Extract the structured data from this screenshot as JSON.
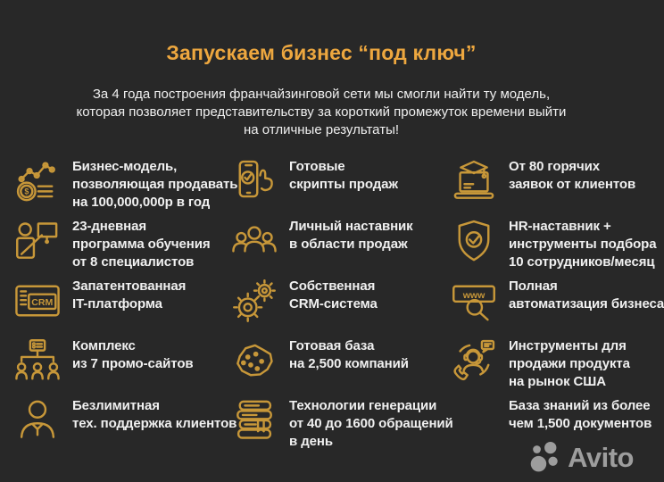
{
  "header": {
    "title": "Запускаем бизнес “под ключ”",
    "subtitle": "За 4 года построения франчайзинговой сети мы смогли найти ту модель,\nкоторая позволяет представительству за короткий промежуток времени выйти\nна отличные результаты!"
  },
  "colors": {
    "background": "#282828",
    "accent_gold": "#C79739",
    "title_gold": "#EDA73F",
    "text": "#F0F0F0",
    "logo_gray": "#9D9D9D"
  },
  "items": [
    {
      "icon": "chart-coins-icon",
      "text": "Бизнес-модель,\nпозволяющая продавать\nна 100,000,000р в год"
    },
    {
      "icon": "smartphone-tap-icon",
      "text": "Готовые\nскрипты продаж"
    },
    {
      "icon": "laptop-graduation-icon",
      "text": "От 80 горячих\nзаявок от клиентов"
    },
    {
      "icon": "trainer-board-icon",
      "text": "23-дневная\nпрограмма обучения\nот 8 специалистов"
    },
    {
      "icon": "people-group-icon",
      "text": "Личный наставник\nв области продаж"
    },
    {
      "icon": "shield-check-icon",
      "text": "HR-наставник +\nинструменты подбора\n10 сотрудников/месяц"
    },
    {
      "icon": "crm-window-icon",
      "text": "Запатентованная\nIT-платформа"
    },
    {
      "icon": "gears-icon",
      "text": "Собственная\nCRM-система"
    },
    {
      "icon": "www-search-icon",
      "text": "Полная\nавтоматизация бизнеса"
    },
    {
      "icon": "sitemap-icon",
      "text": "Комплекс\nиз 7 промо-сайтов"
    },
    {
      "icon": "map-pins-icon",
      "text": "Готовая база\nна 2,500 компаний"
    },
    {
      "icon": "support-agent-icon",
      "text": "Инструменты для\nпродажи продукта\nна рынок США"
    },
    {
      "icon": "person-icon",
      "text": "Безлимитная\nтех. поддержка клиентов"
    },
    {
      "icon": "books-stack-icon",
      "text": "Технологии генерации\nот 40 до 1600 обращений\nв день"
    },
    {
      "icon": null,
      "text": "База знаний из более\nчем 1,500 документов"
    }
  ],
  "footer": {
    "logo_text": "Avito"
  }
}
